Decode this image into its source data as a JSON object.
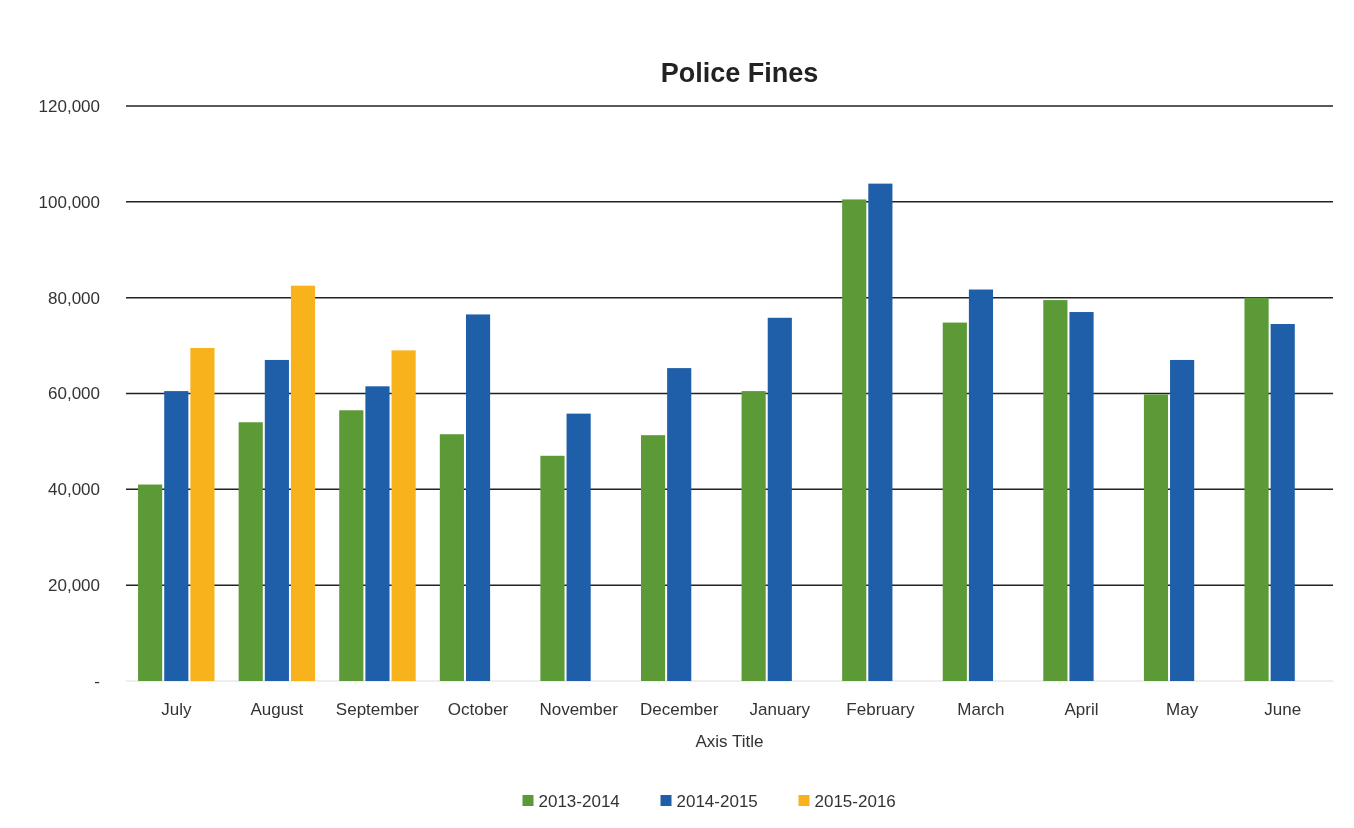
{
  "chart_data": {
    "type": "bar",
    "title": "Police Fines",
    "xlabel": "Axis Title",
    "categories": [
      "July",
      "August",
      "September",
      "October",
      "November",
      "December",
      "January",
      "February",
      "March",
      "April",
      "May",
      "June"
    ],
    "series": [
      {
        "name": "2013-2014",
        "color": "#5b9a36",
        "values": [
          41000,
          54000,
          56500,
          51500,
          47000,
          51300,
          60500,
          100500,
          74800,
          79500,
          59800,
          80000
        ]
      },
      {
        "name": "2014-2015",
        "color": "#1f5ea8",
        "values": [
          60500,
          67000,
          61500,
          76500,
          55800,
          65300,
          75800,
          103800,
          81700,
          77000,
          67000,
          74500
        ]
      },
      {
        "name": "2015-2016",
        "color": "#f8b21c",
        "values": [
          69500,
          82500,
          69000,
          null,
          null,
          null,
          null,
          null,
          null,
          null,
          null,
          null
        ]
      }
    ],
    "ylim": [
      0,
      120000
    ],
    "yticks": [
      {
        "value": 0,
        "label": "-"
      },
      {
        "value": 20000,
        "label": "20,000"
      },
      {
        "value": 40000,
        "label": "40,000"
      },
      {
        "value": 60000,
        "label": "60,000"
      },
      {
        "value": 80000,
        "label": "80,000"
      },
      {
        "value": 100000,
        "label": "100,000"
      },
      {
        "value": 120000,
        "label": "120,000"
      }
    ],
    "grid": "y",
    "legend": "bottom"
  }
}
